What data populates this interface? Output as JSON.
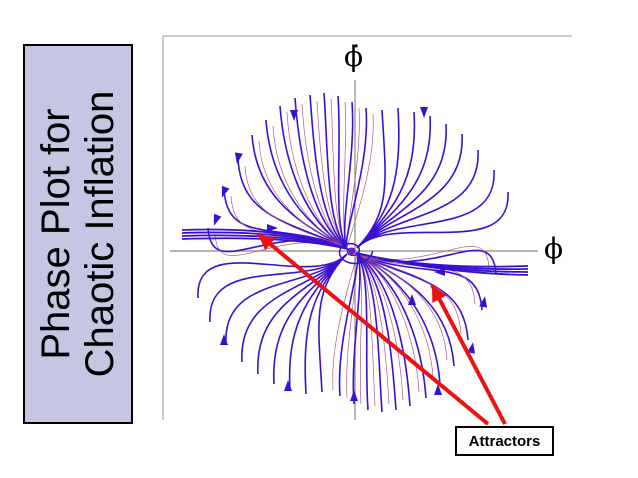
{
  "title": {
    "line1": "Phase Plot for",
    "line2": "Chaotic Inflation"
  },
  "axes": {
    "x_label": "ϕ",
    "y_label": "ϕ̇"
  },
  "callout": {
    "label": "Attractors"
  },
  "colors": {
    "trajectory": "#3a10d0",
    "thin_trajectory": "#b05a8a",
    "arrow": "#ee1111",
    "title_bg": "#c4c6e2",
    "axis": "#888888"
  },
  "icons": {
    "direction_marker": "arrowhead",
    "callout_pointer": "red-arrow"
  }
}
